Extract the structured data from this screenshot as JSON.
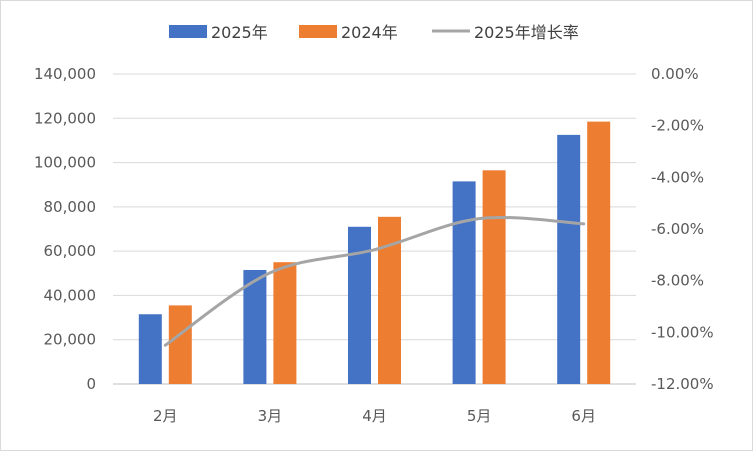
{
  "chart_data": {
    "type": "bar",
    "categories": [
      "2月",
      "3月",
      "4月",
      "5月",
      "6月"
    ],
    "series": [
      {
        "name": "2025年",
        "type": "bar",
        "axis": "left",
        "color": "#4472c4",
        "values": [
          31500,
          51500,
          71000,
          91500,
          112500
        ]
      },
      {
        "name": "2024年",
        "type": "bar",
        "axis": "left",
        "color": "#ed7d31",
        "values": [
          35500,
          55000,
          75500,
          96500,
          118500
        ]
      },
      {
        "name": "2025年增长率",
        "type": "line",
        "axis": "right",
        "color": "#a5a5a5",
        "values": [
          -10.5,
          -7.7,
          -6.8,
          -5.6,
          -5.8
        ]
      }
    ],
    "y_left": {
      "min": 0,
      "max": 140000,
      "ticks": [
        "0",
        "20,000",
        "40,000",
        "60,000",
        "80,000",
        "100,000",
        "120,000",
        "140,000"
      ]
    },
    "y_right": {
      "min": -12,
      "max": 0,
      "ticks": [
        "-12.00%",
        "-10.00%",
        "-8.00%",
        "-6.00%",
        "-4.00%",
        "-2.00%",
        "0.00%"
      ]
    },
    "grid": true,
    "legend_position": "top"
  }
}
